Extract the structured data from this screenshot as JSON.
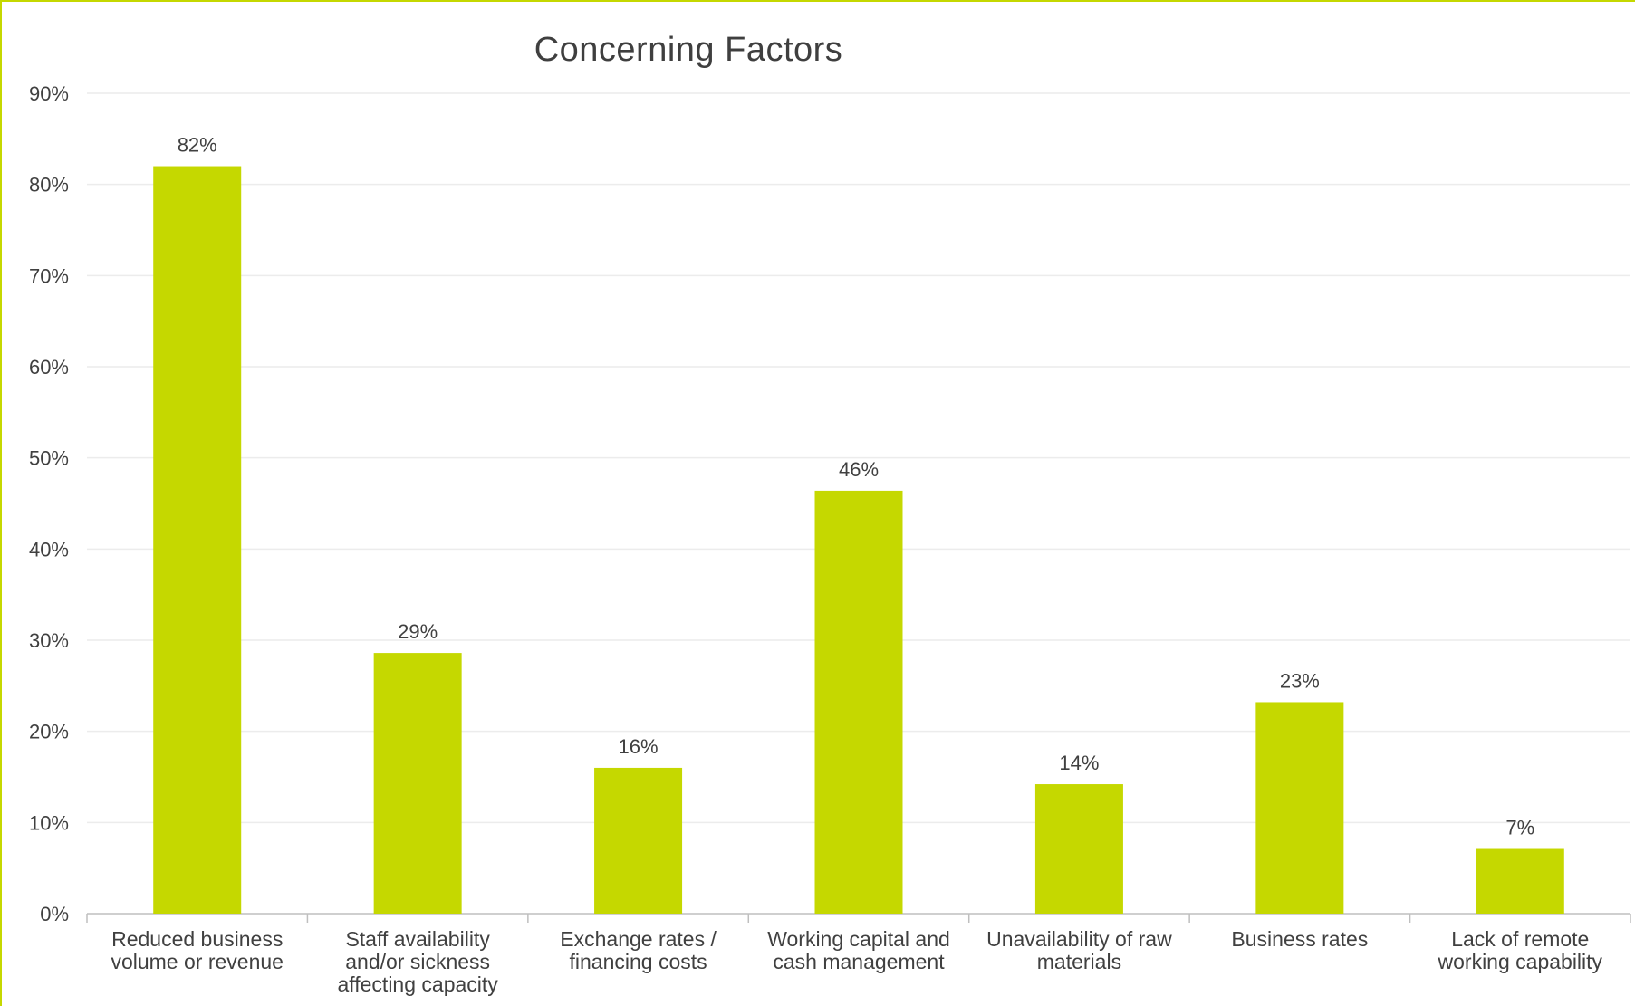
{
  "chart_data": {
    "type": "bar",
    "title": "Concerning Factors",
    "xlabel": "",
    "ylabel": "",
    "ylim": [
      0,
      90
    ],
    "yticks": [
      0,
      10,
      20,
      30,
      40,
      50,
      60,
      70,
      80,
      90
    ],
    "ytick_labels": [
      "0%",
      "10%",
      "20%",
      "30%",
      "40%",
      "50%",
      "60%",
      "70%",
      "80%",
      "90%"
    ],
    "grid": true,
    "legend": "none",
    "bar_color": "#c5d800",
    "categories": [
      [
        "Reduced business",
        "volume or revenue"
      ],
      [
        "Staff availability",
        "and/or sickness",
        "affecting capacity"
      ],
      [
        "Exchange rates /",
        "financing costs"
      ],
      [
        "Working capital and",
        "cash management"
      ],
      [
        "Unavailability of raw",
        "materials"
      ],
      [
        "Business rates"
      ],
      [
        "Lack of remote",
        "working capability"
      ]
    ],
    "values": [
      82,
      28.6,
      16,
      46.4,
      14.2,
      23.2,
      7.1
    ],
    "data_labels": [
      "82%",
      "29%",
      "16%",
      "46%",
      "14%",
      "23%",
      "7%"
    ]
  }
}
